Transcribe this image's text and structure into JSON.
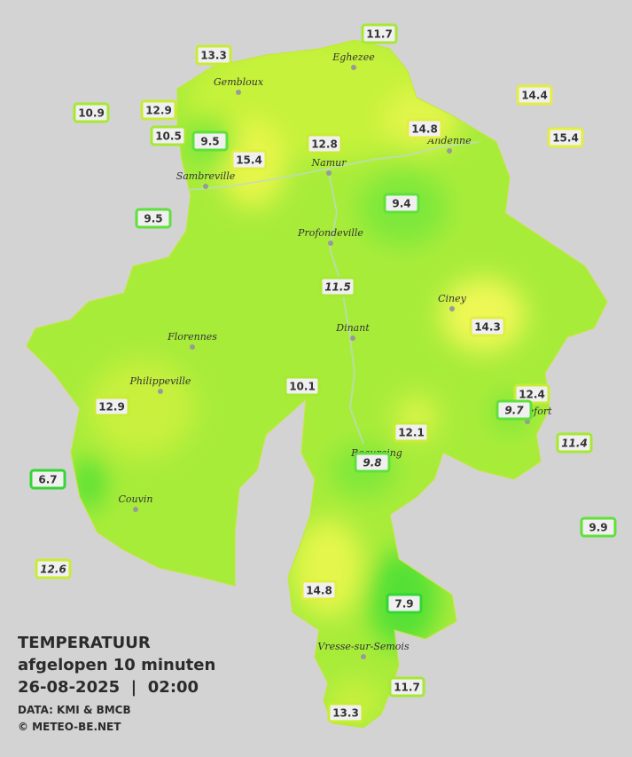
{
  "title": {
    "line1": "TEMPERATUUR",
    "line2": "afgelopen 10 minuten",
    "line3": "26-08-2025  |  02:00",
    "source": "DATA: KMI & BMCB",
    "copyright": "© METEO-BE.NET"
  },
  "towns": [
    "Eghezee",
    "Gembloux",
    "Andenne",
    "Namur",
    "Sambreville",
    "Profondeville",
    "Ciney",
    "Dinant",
    "Florennes",
    "Philippeville",
    "Couvin",
    "Beauraing",
    "Rochefort",
    "Vresse-sur-Semois"
  ],
  "stations": [
    {
      "value": 11.7,
      "italic": false
    },
    {
      "value": 13.3,
      "italic": false
    },
    {
      "value": 14.4,
      "italic": false
    },
    {
      "value": 10.9,
      "italic": false
    },
    {
      "value": 12.9,
      "italic": false
    },
    {
      "value": 10.5,
      "italic": false
    },
    {
      "value": 9.5,
      "italic": false
    },
    {
      "value": 14.8,
      "italic": false
    },
    {
      "value": 15.4,
      "italic": false
    },
    {
      "value": 12.8,
      "italic": false
    },
    {
      "value": 15.4,
      "italic": false
    },
    {
      "value": 9.4,
      "italic": false
    },
    {
      "value": 9.5,
      "italic": false
    },
    {
      "value": 11.5,
      "italic": true
    },
    {
      "value": 14.3,
      "italic": false
    },
    {
      "value": 10.1,
      "italic": false
    },
    {
      "value": 12.4,
      "italic": false
    },
    {
      "value": 9.7,
      "italic": true
    },
    {
      "value": 12.9,
      "italic": false
    },
    {
      "value": 12.1,
      "italic": false
    },
    {
      "value": 11.4,
      "italic": true
    },
    {
      "value": 9.8,
      "italic": true
    },
    {
      "value": 6.7,
      "italic": false
    },
    {
      "value": 9.9,
      "italic": false
    },
    {
      "value": 12.6,
      "italic": true
    },
    {
      "value": 14.8,
      "italic": false
    },
    {
      "value": 7.9,
      "italic": false
    },
    {
      "value": 11.7,
      "italic": false
    },
    {
      "value": 13.3,
      "italic": false
    }
  ]
}
